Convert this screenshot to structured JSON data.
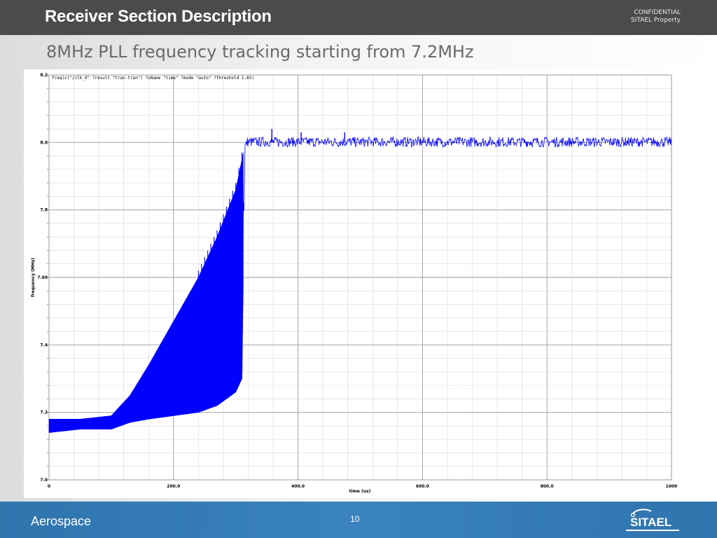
{
  "slide": {
    "title": "Receiver Section Description",
    "confidential_line1": "CONFIDENTIAL",
    "confidential_line2": "SITAEL Property",
    "subtitle": "8MHz PLL frequency tracking starting from 7.2MHz"
  },
  "footer": {
    "left_text": "Aerospace",
    "page_number": "10",
    "logo_text": "SITAEL"
  },
  "colors": {
    "header_bg": "#4b4b4b",
    "footer_bg": "#3a83bf",
    "series": "#0000ff",
    "grid": "#a8a8a8"
  },
  "chart_data": {
    "type": "line",
    "legend_text": "freq(v(\"/clk_0\" ?result \"tran-tran\") ?xName \"time\" ?mode \"auto\" ?threshold 1.65)",
    "xlabel": "time (us)",
    "ylabel": "frequency (MHz)",
    "xlim": [
      0,
      1000
    ],
    "ylim": [
      7.0,
      8.2
    ],
    "x_ticks": [
      "0",
      "200.0",
      "400.0",
      "600.0",
      "800.0",
      "1000"
    ],
    "y_ticks": [
      "7.0",
      "7.2",
      "7.4",
      "7.60",
      "7.8",
      "8.0",
      "8.2"
    ],
    "grid": true,
    "series": [
      {
        "envelope_upper": [
          [
            0,
            7.18
          ],
          [
            50,
            7.18
          ],
          [
            100,
            7.19
          ],
          [
            130,
            7.25
          ],
          [
            160,
            7.34
          ],
          [
            200,
            7.47
          ],
          [
            240,
            7.6
          ],
          [
            270,
            7.72
          ],
          [
            300,
            7.86
          ],
          [
            310,
            7.95
          ],
          [
            315,
            8.0
          ],
          [
            320,
            8.02
          ],
          [
            1000,
            8.02
          ]
        ],
        "envelope_lower": [
          [
            0,
            7.14
          ],
          [
            50,
            7.15
          ],
          [
            100,
            7.15
          ],
          [
            130,
            7.17
          ],
          [
            160,
            7.18
          ],
          [
            200,
            7.19
          ],
          [
            240,
            7.2
          ],
          [
            270,
            7.22
          ],
          [
            300,
            7.26
          ],
          [
            310,
            7.3
          ],
          [
            315,
            7.98
          ],
          [
            320,
            7.99
          ],
          [
            1000,
            7.98
          ]
        ],
        "spikes": [
          [
            358,
            8.04
          ],
          [
            405,
            8.03
          ],
          [
            475,
            8.03
          ]
        ],
        "settled_value": 8.0
      }
    ]
  }
}
